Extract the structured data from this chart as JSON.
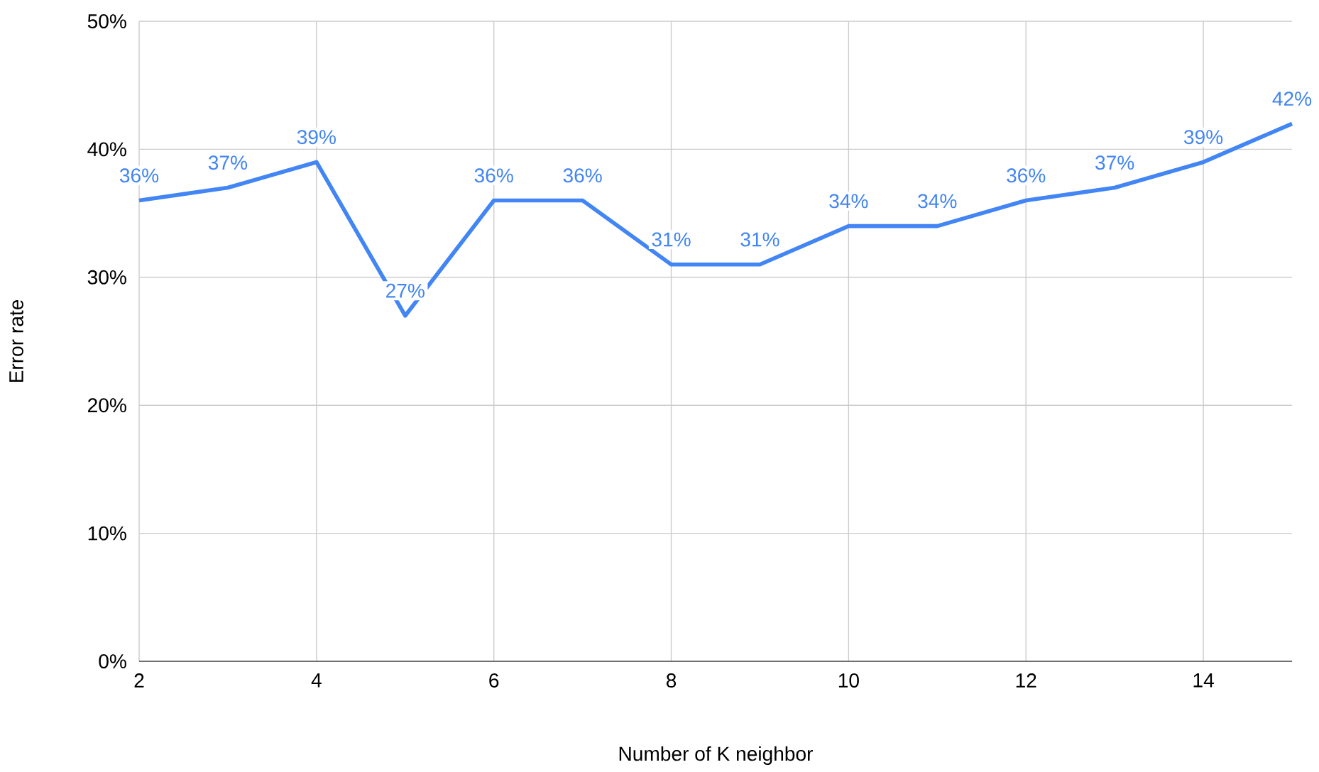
{
  "chart_data": {
    "type": "line",
    "xlabel": "Number of K neighbor",
    "ylabel": "Error rate",
    "x": [
      2,
      3,
      4,
      5,
      6,
      7,
      8,
      9,
      10,
      11,
      12,
      13,
      14,
      15
    ],
    "series": [
      {
        "color": "#4285f4",
        "values": [
          36,
          37,
          39,
          27,
          36,
          36,
          31,
          31,
          34,
          34,
          36,
          37,
          39,
          42
        ],
        "value_labels": [
          "36%",
          "37%",
          "39%",
          "27%",
          "36%",
          "36%",
          "31%",
          "31%",
          "34%",
          "34%",
          "36%",
          "37%",
          "39%",
          "42%"
        ]
      }
    ],
    "xlim": [
      2,
      15
    ],
    "xticks": [
      2,
      4,
      6,
      8,
      10,
      12,
      14
    ],
    "ylim": [
      0,
      50
    ],
    "yticks": [
      {
        "value": 0,
        "label": "0%"
      },
      {
        "value": 10,
        "label": "10%"
      },
      {
        "value": 20,
        "label": "20%"
      },
      {
        "value": 30,
        "label": "30%"
      },
      {
        "value": 40,
        "label": "40%"
      },
      {
        "value": 50,
        "label": "50%"
      }
    ],
    "grid": true,
    "marker": "none",
    "line_style": "solid"
  }
}
